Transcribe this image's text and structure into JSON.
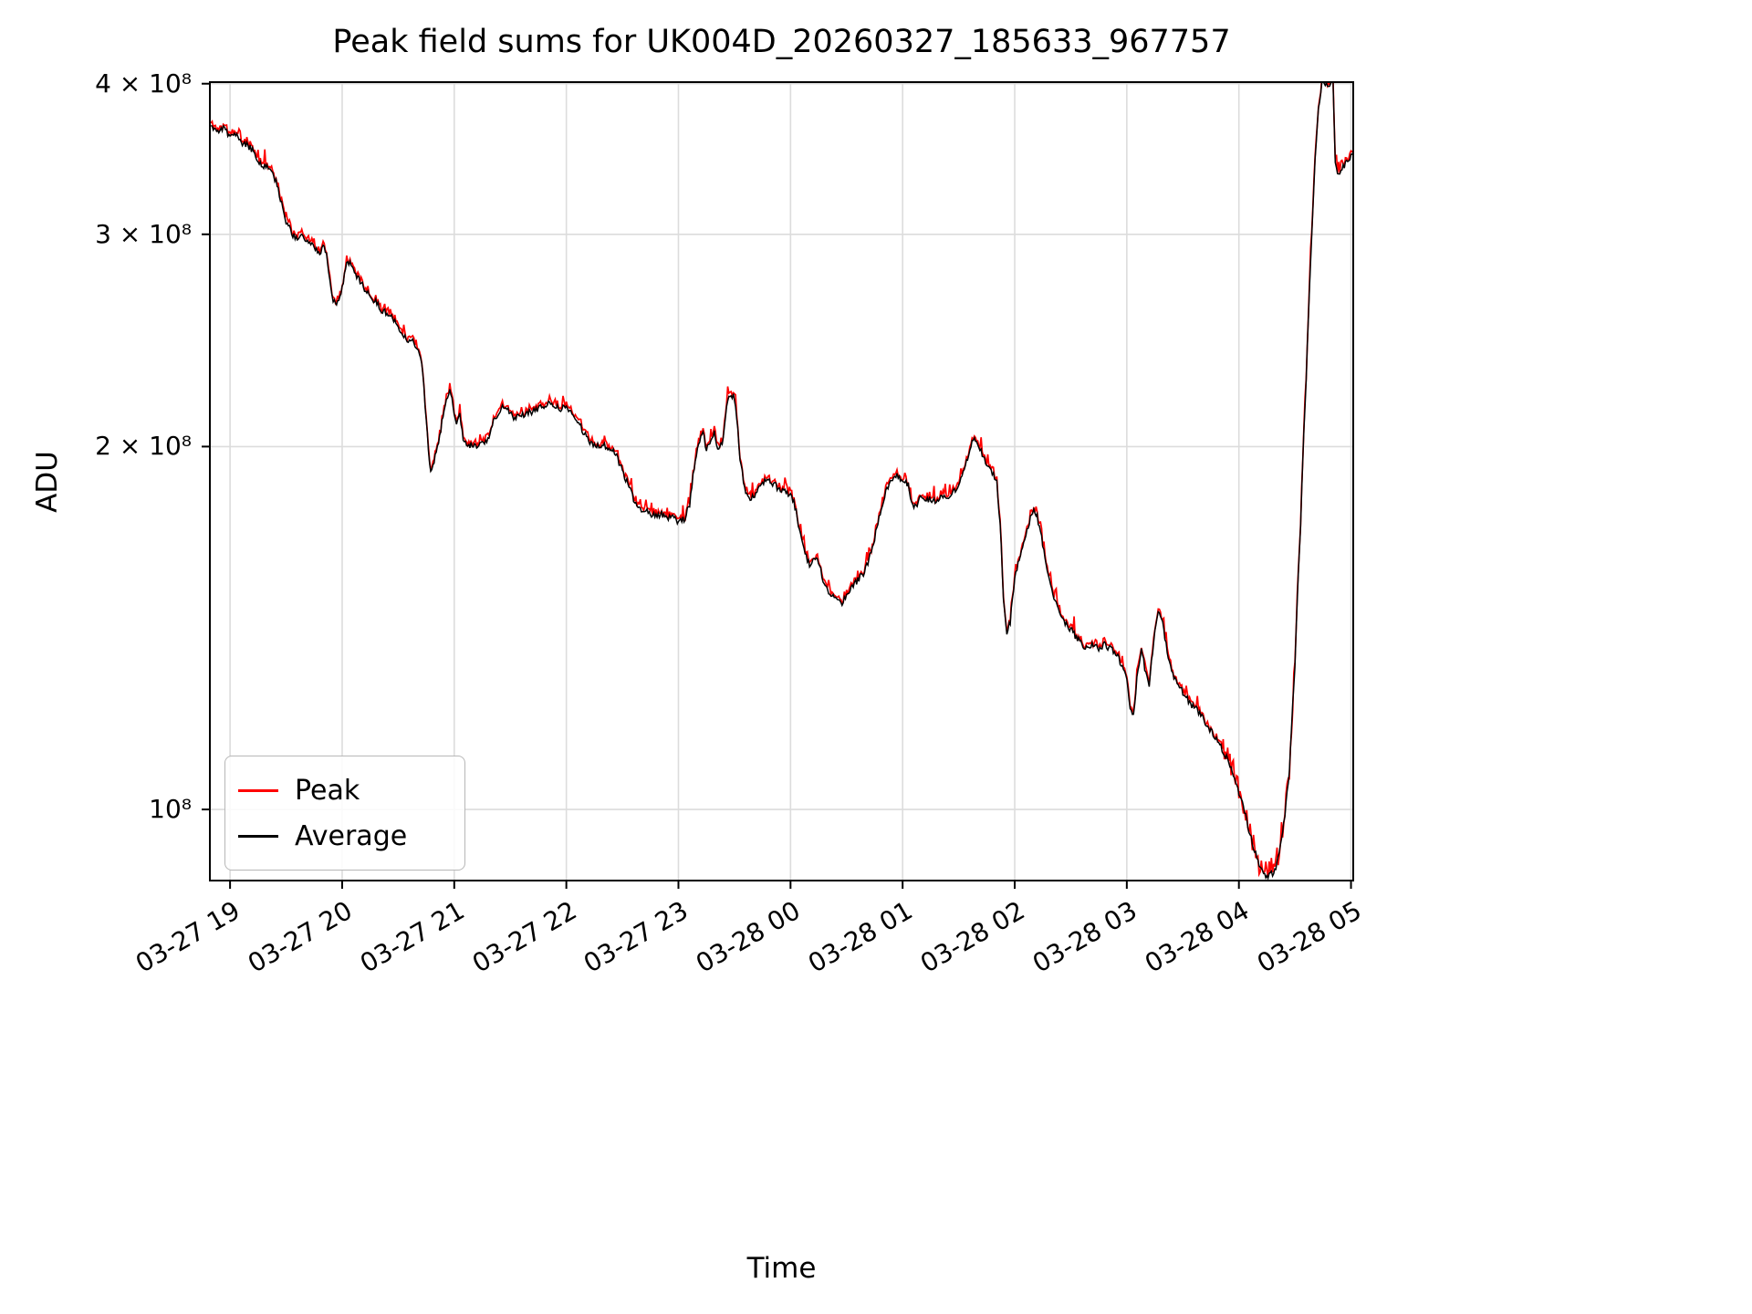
{
  "figure": {
    "title": "Peak field sums for UK004D_20260327_185633_967757"
  },
  "chart_data": {
    "type": "line",
    "title": "Peak field sums for UK004D_20260327_185633_967757",
    "xlabel": "Time",
    "ylabel": "ADU",
    "yscale": "log",
    "grid": true,
    "grid_color": "#dcdcdc",
    "legend_position": "lower left",
    "xlim_hours": [
      -0.18,
      10.02
    ],
    "ylim_1e8": [
      0.873,
      4.012
    ],
    "yticks": [
      {
        "v": 1,
        "label": "10⁸"
      },
      {
        "v": 2,
        "label": "2 × 10⁸"
      },
      {
        "v": 3,
        "label": "3 × 10⁸"
      },
      {
        "v": 4,
        "label": "4 × 10⁸"
      }
    ],
    "xticks": [
      {
        "h": 0,
        "label": "03-27 19"
      },
      {
        "h": 1,
        "label": "03-27 20"
      },
      {
        "h": 2,
        "label": "03-27 21"
      },
      {
        "h": 3,
        "label": "03-27 22"
      },
      {
        "h": 4,
        "label": "03-27 23"
      },
      {
        "h": 5,
        "label": "03-28 00"
      },
      {
        "h": 6,
        "label": "03-28 01"
      },
      {
        "h": 7,
        "label": "03-28 02"
      },
      {
        "h": 8,
        "label": "03-28 03"
      },
      {
        "h": 9,
        "label": "03-28 04"
      },
      {
        "h": 10,
        "label": "03-28 05"
      }
    ],
    "series": [
      {
        "name": "Peak",
        "color": "#ff0000"
      },
      {
        "name": "Average",
        "color": "#000000"
      }
    ],
    "units": "1e8 ADU, t = hours after 03-27 19:00",
    "average_1e8": [
      [
        -0.17,
        3.69
      ],
      [
        -0.1,
        3.66
      ],
      [
        -0.05,
        3.67
      ],
      [
        0,
        3.62
      ],
      [
        0.05,
        3.63
      ],
      [
        0.1,
        3.58
      ],
      [
        0.15,
        3.56
      ],
      [
        0.2,
        3.52
      ],
      [
        0.25,
        3.46
      ],
      [
        0.3,
        3.42
      ],
      [
        0.33,
        3.43
      ],
      [
        0.38,
        3.38
      ],
      [
        0.42,
        3.3
      ],
      [
        0.46,
        3.18
      ],
      [
        0.5,
        3.08
      ],
      [
        0.55,
        3.0
      ],
      [
        0.6,
        2.97
      ],
      [
        0.64,
        3.0
      ],
      [
        0.68,
        2.97
      ],
      [
        0.72,
        2.94
      ],
      [
        0.76,
        2.92
      ],
      [
        0.8,
        2.9
      ],
      [
        0.83,
        2.93
      ],
      [
        0.86,
        2.88
      ],
      [
        0.89,
        2.76
      ],
      [
        0.92,
        2.64
      ],
      [
        0.95,
        2.62
      ],
      [
        1.0,
        2.71
      ],
      [
        1.04,
        2.86
      ],
      [
        1.07,
        2.84
      ],
      [
        1.11,
        2.79
      ],
      [
        1.16,
        2.74
      ],
      [
        1.22,
        2.69
      ],
      [
        1.28,
        2.65
      ],
      [
        1.35,
        2.6
      ],
      [
        1.42,
        2.57
      ],
      [
        1.5,
        2.52
      ],
      [
        1.56,
        2.47
      ],
      [
        1.6,
        2.44
      ],
      [
        1.63,
        2.46
      ],
      [
        1.66,
        2.42
      ],
      [
        1.69,
        2.4
      ],
      [
        1.72,
        2.3
      ],
      [
        1.75,
        2.1
      ],
      [
        1.78,
        1.93
      ],
      [
        1.8,
        1.91
      ],
      [
        1.83,
        1.97
      ],
      [
        1.87,
        2.04
      ],
      [
        1.9,
        2.12
      ],
      [
        1.93,
        2.19
      ],
      [
        1.96,
        2.23
      ],
      [
        1.99,
        2.16
      ],
      [
        2.02,
        2.09
      ],
      [
        2.05,
        2.12
      ],
      [
        2.08,
        2.03
      ],
      [
        2.12,
        1.99
      ],
      [
        2.16,
        2.01
      ],
      [
        2.2,
        2.0
      ],
      [
        2.25,
        2.01
      ],
      [
        2.3,
        2.03
      ],
      [
        2.35,
        2.1
      ],
      [
        2.4,
        2.14
      ],
      [
        2.45,
        2.16
      ],
      [
        2.5,
        2.13
      ],
      [
        2.55,
        2.11
      ],
      [
        2.6,
        2.12
      ],
      [
        2.65,
        2.13
      ],
      [
        2.7,
        2.14
      ],
      [
        2.75,
        2.15
      ],
      [
        2.8,
        2.16
      ],
      [
        2.85,
        2.17
      ],
      [
        2.9,
        2.16
      ],
      [
        2.95,
        2.15
      ],
      [
        3.0,
        2.16
      ],
      [
        3.05,
        2.14
      ],
      [
        3.1,
        2.1
      ],
      [
        3.15,
        2.06
      ],
      [
        3.2,
        2.02
      ],
      [
        3.25,
        2.0
      ],
      [
        3.3,
        2.01
      ],
      [
        3.35,
        2.0
      ],
      [
        3.4,
        1.99
      ],
      [
        3.45,
        1.96
      ],
      [
        3.5,
        1.91
      ],
      [
        3.55,
        1.86
      ],
      [
        3.6,
        1.81
      ],
      [
        3.65,
        1.78
      ],
      [
        3.7,
        1.77
      ],
      [
        3.75,
        1.76
      ],
      [
        3.8,
        1.75
      ],
      [
        3.85,
        1.76
      ],
      [
        3.9,
        1.74
      ],
      [
        3.95,
        1.75
      ],
      [
        4.0,
        1.73
      ],
      [
        4.05,
        1.74
      ],
      [
        4.1,
        1.79
      ],
      [
        4.14,
        1.92
      ],
      [
        4.18,
        2.02
      ],
      [
        4.22,
        2.05
      ],
      [
        4.25,
        1.99
      ],
      [
        4.29,
        2.03
      ],
      [
        4.32,
        2.05
      ],
      [
        4.35,
        1.98
      ],
      [
        4.39,
        2.01
      ],
      [
        4.43,
        2.16
      ],
      [
        4.46,
        2.21
      ],
      [
        4.49,
        2.2
      ],
      [
        4.52,
        2.12
      ],
      [
        4.55,
        1.95
      ],
      [
        4.59,
        1.85
      ],
      [
        4.63,
        1.81
      ],
      [
        4.68,
        1.82
      ],
      [
        4.73,
        1.85
      ],
      [
        4.78,
        1.88
      ],
      [
        4.83,
        1.87
      ],
      [
        4.88,
        1.85
      ],
      [
        4.93,
        1.84
      ],
      [
        4.98,
        1.83
      ],
      [
        5.03,
        1.8
      ],
      [
        5.08,
        1.71
      ],
      [
        5.13,
        1.63
      ],
      [
        5.18,
        1.59
      ],
      [
        5.22,
        1.62
      ],
      [
        5.26,
        1.59
      ],
      [
        5.3,
        1.54
      ],
      [
        5.35,
        1.51
      ],
      [
        5.4,
        1.5
      ],
      [
        5.45,
        1.48
      ],
      [
        5.5,
        1.5
      ],
      [
        5.55,
        1.53
      ],
      [
        5.6,
        1.55
      ],
      [
        5.65,
        1.57
      ],
      [
        5.7,
        1.61
      ],
      [
        5.75,
        1.68
      ],
      [
        5.8,
        1.76
      ],
      [
        5.85,
        1.83
      ],
      [
        5.9,
        1.88
      ],
      [
        5.95,
        1.89
      ],
      [
        6.0,
        1.88
      ],
      [
        6.05,
        1.86
      ],
      [
        6.08,
        1.8
      ],
      [
        6.12,
        1.78
      ],
      [
        6.16,
        1.82
      ],
      [
        6.2,
        1.8
      ],
      [
        6.25,
        1.81
      ],
      [
        6.3,
        1.8
      ],
      [
        6.35,
        1.82
      ],
      [
        6.4,
        1.81
      ],
      [
        6.45,
        1.83
      ],
      [
        6.5,
        1.85
      ],
      [
        6.55,
        1.91
      ],
      [
        6.6,
        1.99
      ],
      [
        6.64,
        2.04
      ],
      [
        6.68,
        2.0
      ],
      [
        6.72,
        1.96
      ],
      [
        6.76,
        1.93
      ],
      [
        6.8,
        1.9
      ],
      [
        6.84,
        1.87
      ],
      [
        6.87,
        1.72
      ],
      [
        6.9,
        1.5
      ],
      [
        6.93,
        1.4
      ],
      [
        6.96,
        1.43
      ],
      [
        7.0,
        1.56
      ],
      [
        7.04,
        1.61
      ],
      [
        7.08,
        1.66
      ],
      [
        7.12,
        1.72
      ],
      [
        7.16,
        1.77
      ],
      [
        7.2,
        1.75
      ],
      [
        7.25,
        1.66
      ],
      [
        7.3,
        1.56
      ],
      [
        7.35,
        1.49
      ],
      [
        7.4,
        1.46
      ],
      [
        7.45,
        1.43
      ],
      [
        7.5,
        1.41
      ],
      [
        7.55,
        1.39
      ],
      [
        7.6,
        1.37
      ],
      [
        7.65,
        1.36
      ],
      [
        7.7,
        1.37
      ],
      [
        7.75,
        1.36
      ],
      [
        7.8,
        1.37
      ],
      [
        7.85,
        1.36
      ],
      [
        7.9,
        1.35
      ],
      [
        7.95,
        1.32
      ],
      [
        8.0,
        1.28
      ],
      [
        8.03,
        1.22
      ],
      [
        8.06,
        1.2
      ],
      [
        8.1,
        1.31
      ],
      [
        8.13,
        1.36
      ],
      [
        8.16,
        1.31
      ],
      [
        8.2,
        1.27
      ],
      [
        8.24,
        1.38
      ],
      [
        8.28,
        1.46
      ],
      [
        8.31,
        1.44
      ],
      [
        8.35,
        1.37
      ],
      [
        8.39,
        1.31
      ],
      [
        8.43,
        1.28
      ],
      [
        8.48,
        1.26
      ],
      [
        8.53,
        1.24
      ],
      [
        8.58,
        1.22
      ],
      [
        8.63,
        1.21
      ],
      [
        8.68,
        1.19
      ],
      [
        8.73,
        1.17
      ],
      [
        8.78,
        1.15
      ],
      [
        8.83,
        1.13
      ],
      [
        8.88,
        1.11
      ],
      [
        8.93,
        1.08
      ],
      [
        8.98,
        1.05
      ],
      [
        9.03,
        1.01
      ],
      [
        9.08,
        0.97
      ],
      [
        9.13,
        0.93
      ],
      [
        9.18,
        0.9
      ],
      [
        9.22,
        0.885
      ],
      [
        9.27,
        0.88
      ],
      [
        9.32,
        0.89
      ],
      [
        9.36,
        0.92
      ],
      [
        9.4,
        0.97
      ],
      [
        9.45,
        1.08
      ],
      [
        9.5,
        1.32
      ],
      [
        9.55,
        1.72
      ],
      [
        9.6,
        2.28
      ],
      [
        9.65,
        3.0
      ],
      [
        9.68,
        3.45
      ],
      [
        9.71,
        3.82
      ],
      [
        9.74,
        3.99
      ],
      [
        9.77,
        4.01
      ],
      [
        9.8,
        3.99
      ],
      [
        9.82,
        4.01
      ],
      [
        9.84,
        3.99
      ],
      [
        9.86,
        3.42
      ],
      [
        9.88,
        3.36
      ],
      [
        9.91,
        3.39
      ],
      [
        9.94,
        3.42
      ],
      [
        9.97,
        3.45
      ],
      [
        10.0,
        3.49
      ],
      [
        10.02,
        3.51
      ]
    ]
  }
}
